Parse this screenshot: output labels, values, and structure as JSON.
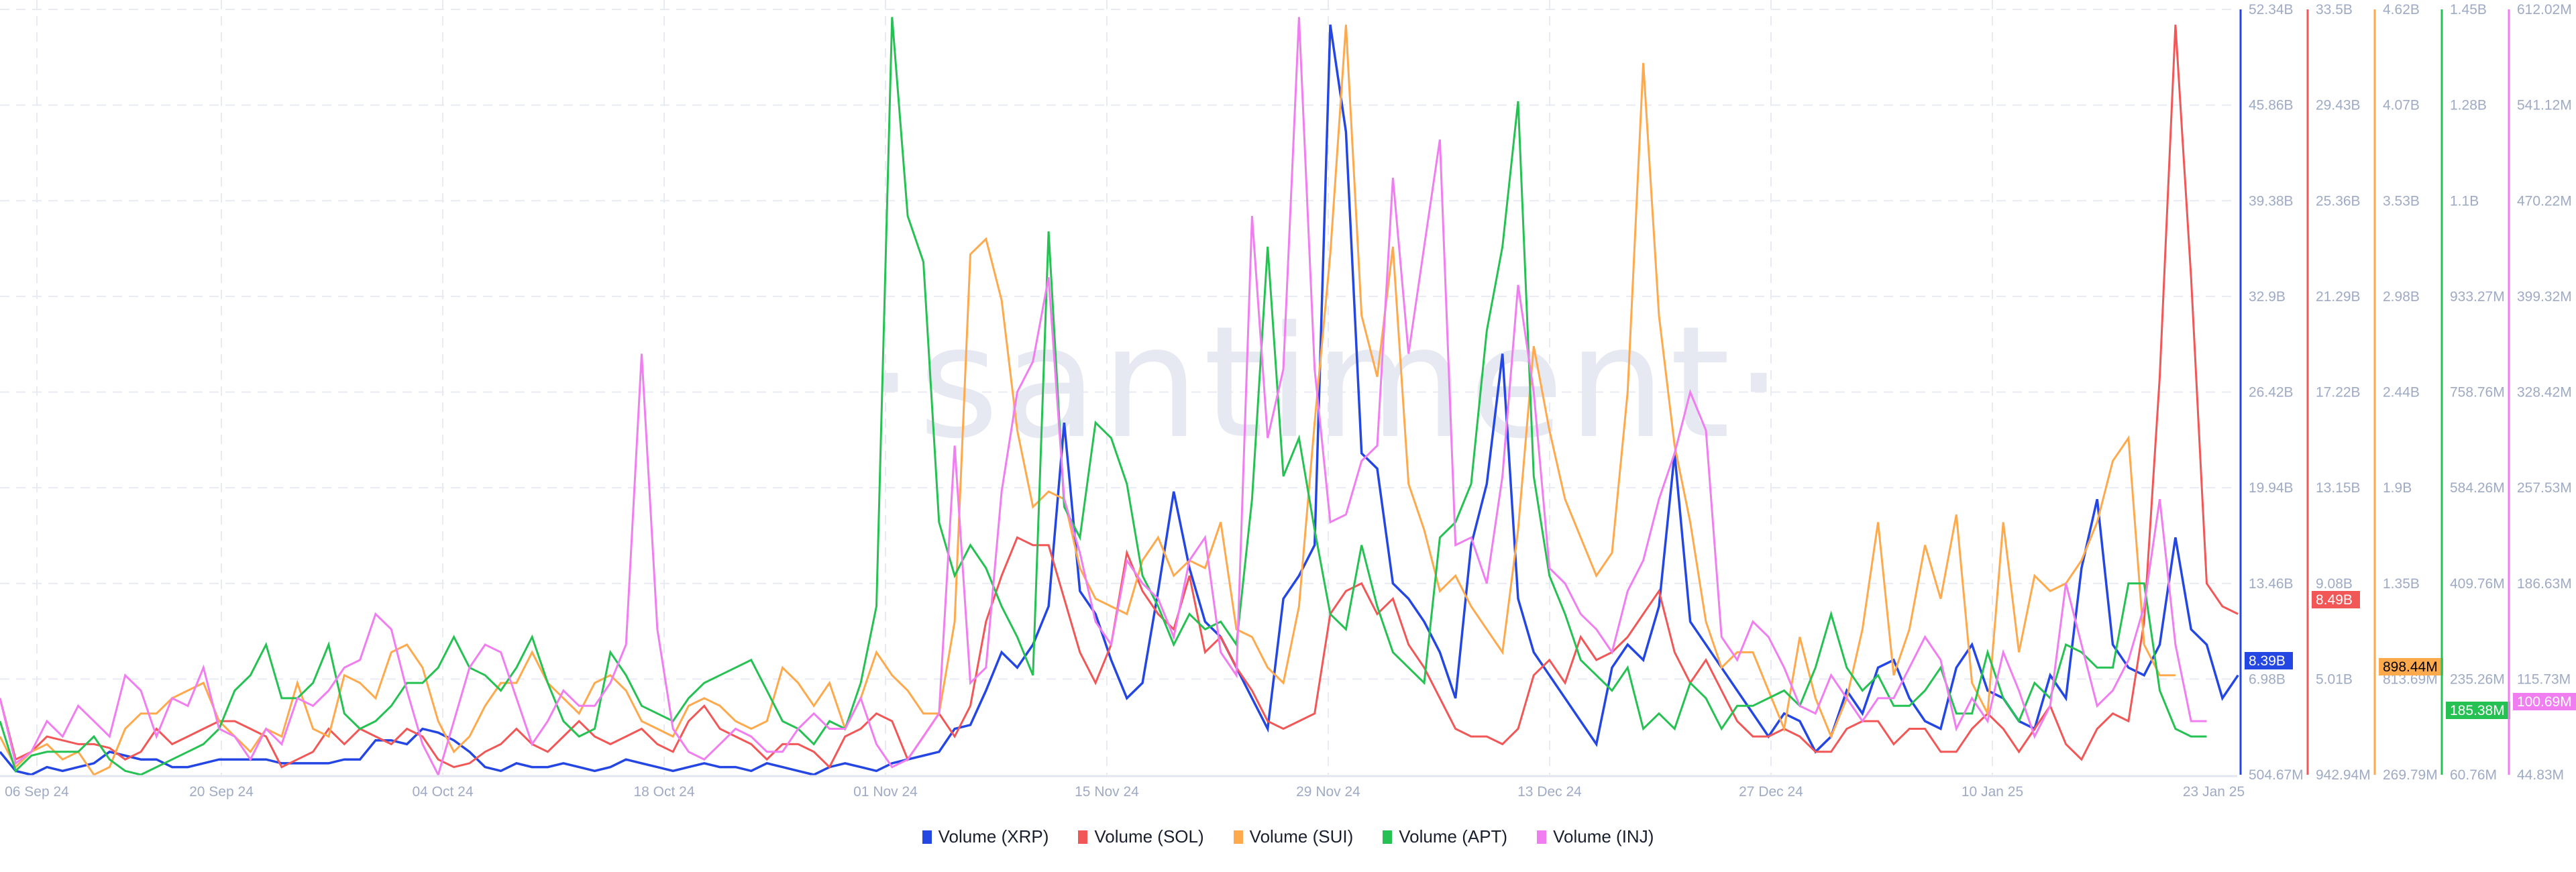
{
  "watermark": "·santiment·",
  "legend": [
    {
      "label": "Volume (XRP)",
      "color": "#2446e3"
    },
    {
      "label": "Volume (SOL)",
      "color": "#f25757"
    },
    {
      "label": "Volume (SUI)",
      "color": "#ffa94d"
    },
    {
      "label": "Volume (APT)",
      "color": "#26c153"
    },
    {
      "label": "Volume (INJ)",
      "color": "#f07ef0"
    }
  ],
  "x_axis": {
    "ticks": [
      "06 Sep 24",
      "20 Sep 24",
      "04 Oct 24",
      "18 Oct 24",
      "01 Nov 24",
      "15 Nov 24",
      "29 Nov 24",
      "13 Dec 24",
      "27 Dec 24",
      "10 Jan 25",
      "23 Jan 25"
    ]
  },
  "y_axes": [
    {
      "series": "Volume (XRP)",
      "color": "#2446e3",
      "ticks": [
        "52.34B",
        "45.86B",
        "39.38B",
        "32.9B",
        "26.42B",
        "19.94B",
        "13.46B",
        "6.98B",
        "504.67M"
      ],
      "current": "8.39B",
      "badge_text_color": "#ffffff"
    },
    {
      "series": "Volume (SOL)",
      "color": "#f25757",
      "ticks": [
        "33.5B",
        "29.43B",
        "25.36B",
        "21.29B",
        "17.22B",
        "13.15B",
        "9.08B",
        "5.01B",
        "942.94M"
      ],
      "current": "8.49B",
      "badge_text_color": "#ffffff"
    },
    {
      "series": "Volume (SUI)",
      "color": "#ffa94d",
      "ticks": [
        "4.62B",
        "4.07B",
        "3.53B",
        "2.98B",
        "2.44B",
        "1.9B",
        "1.35B",
        "813.69M",
        "269.79M"
      ],
      "current": "898.44M",
      "badge_text_color": "#000000"
    },
    {
      "series": "Volume (APT)",
      "color": "#26c153",
      "ticks": [
        "1.45B",
        "1.28B",
        "1.1B",
        "933.27M",
        "758.76M",
        "584.26M",
        "409.76M",
        "235.26M",
        "60.76M"
      ],
      "current": "185.38M",
      "badge_text_color": "#ffffff"
    },
    {
      "series": "Volume (INJ)",
      "color": "#f07ef0",
      "ticks": [
        "612.02M",
        "541.12M",
        "470.22M",
        "399.32M",
        "328.42M",
        "257.53M",
        "186.63M",
        "115.73M",
        "44.83M"
      ],
      "current": "100.69M",
      "badge_text_color": "#ffffff"
    }
  ],
  "chart_data": {
    "type": "line",
    "title": "",
    "xlabel": "",
    "ylabel": "Volume",
    "grid": true,
    "legend_position": "bottom",
    "x_start": "04 Sep 24",
    "x_end": "23 Jan 25",
    "x_step": "1 day",
    "series": [
      {
        "name": "Volume (XRP)",
        "axis_range": [
          0.50467,
          52.34
        ],
        "unit": "B",
        "norm": [
          0.03,
          0.005,
          0.0,
          0.01,
          0.005,
          0.01,
          0.015,
          0.03,
          0.025,
          0.02,
          0.02,
          0.01,
          0.01,
          0.015,
          0.02,
          0.02,
          0.02,
          0.02,
          0.015,
          0.015,
          0.015,
          0.015,
          0.02,
          0.02,
          0.045,
          0.045,
          0.04,
          0.06,
          0.055,
          0.045,
          0.03,
          0.01,
          0.005,
          0.015,
          0.01,
          0.01,
          0.015,
          0.01,
          0.005,
          0.01,
          0.02,
          0.015,
          0.01,
          0.005,
          0.01,
          0.015,
          0.01,
          0.01,
          0.005,
          0.015,
          0.01,
          0.005,
          0.0,
          0.01,
          0.015,
          0.01,
          0.005,
          0.015,
          0.02,
          0.025,
          0.03,
          0.06,
          0.065,
          0.11,
          0.16,
          0.14,
          0.17,
          0.22,
          0.46,
          0.24,
          0.21,
          0.15,
          0.1,
          0.12,
          0.24,
          0.37,
          0.27,
          0.2,
          0.18,
          0.14,
          0.1,
          0.06,
          0.23,
          0.26,
          0.3,
          0.98,
          0.84,
          0.42,
          0.4,
          0.25,
          0.23,
          0.2,
          0.16,
          0.1,
          0.3,
          0.38,
          0.55,
          0.23,
          0.16,
          0.13,
          0.1,
          0.07,
          0.04,
          0.14,
          0.17,
          0.15,
          0.22,
          0.42,
          0.2,
          0.17,
          0.14,
          0.11,
          0.08,
          0.05,
          0.08,
          0.07,
          0.03,
          0.05,
          0.11,
          0.08,
          0.14,
          0.15,
          0.1,
          0.07,
          0.06,
          0.14,
          0.17,
          0.11,
          0.1,
          0.07,
          0.06,
          0.13,
          0.1,
          0.27,
          0.36,
          0.17,
          0.14,
          0.13,
          0.17,
          0.31,
          0.19,
          0.17,
          0.1,
          0.13
        ]
      },
      {
        "name": "Volume (SOL)",
        "axis_range": [
          0.94294,
          33.5
        ],
        "unit": "B",
        "norm": [
          0.1,
          0.02,
          0.03,
          0.05,
          0.045,
          0.04,
          0.04,
          0.035,
          0.02,
          0.03,
          0.06,
          0.04,
          0.05,
          0.06,
          0.07,
          0.07,
          0.06,
          0.05,
          0.01,
          0.02,
          0.03,
          0.06,
          0.04,
          0.06,
          0.05,
          0.04,
          0.06,
          0.05,
          0.02,
          0.01,
          0.015,
          0.03,
          0.04,
          0.06,
          0.04,
          0.03,
          0.05,
          0.07,
          0.05,
          0.04,
          0.05,
          0.06,
          0.04,
          0.03,
          0.07,
          0.09,
          0.06,
          0.05,
          0.04,
          0.02,
          0.04,
          0.04,
          0.03,
          0.01,
          0.05,
          0.06,
          0.08,
          0.07,
          0.02,
          0.05,
          0.08,
          0.05,
          0.09,
          0.2,
          0.26,
          0.31,
          0.3,
          0.3,
          0.23,
          0.16,
          0.12,
          0.17,
          0.29,
          0.24,
          0.21,
          0.19,
          0.26,
          0.16,
          0.18,
          0.14,
          0.11,
          0.07,
          0.06,
          0.07,
          0.08,
          0.21,
          0.24,
          0.25,
          0.21,
          0.23,
          0.17,
          0.14,
          0.1,
          0.06,
          0.05,
          0.05,
          0.04,
          0.06,
          0.13,
          0.15,
          0.12,
          0.18,
          0.15,
          0.16,
          0.18,
          0.21,
          0.24,
          0.16,
          0.12,
          0.15,
          0.11,
          0.07,
          0.05,
          0.05,
          0.06,
          0.05,
          0.03,
          0.03,
          0.06,
          0.07,
          0.07,
          0.04,
          0.06,
          0.06,
          0.03,
          0.03,
          0.06,
          0.08,
          0.06,
          0.03,
          0.06,
          0.09,
          0.04,
          0.02,
          0.06,
          0.08,
          0.07,
          0.2,
          0.52,
          0.98,
          0.65,
          0.25,
          0.22,
          0.21
        ]
      },
      {
        "name": "Volume (SUI)",
        "axis_range": [
          0.26979,
          4.62
        ],
        "unit": "B",
        "norm": [
          0.05,
          0.01,
          0.03,
          0.04,
          0.02,
          0.03,
          0.0,
          0.01,
          0.06,
          0.08,
          0.08,
          0.1,
          0.11,
          0.12,
          0.07,
          0.05,
          0.03,
          0.06,
          0.05,
          0.12,
          0.06,
          0.05,
          0.13,
          0.12,
          0.1,
          0.16,
          0.17,
          0.14,
          0.07,
          0.03,
          0.05,
          0.09,
          0.12,
          0.12,
          0.16,
          0.12,
          0.1,
          0.08,
          0.12,
          0.13,
          0.11,
          0.07,
          0.06,
          0.05,
          0.09,
          0.1,
          0.09,
          0.07,
          0.06,
          0.07,
          0.14,
          0.12,
          0.09,
          0.12,
          0.06,
          0.1,
          0.16,
          0.13,
          0.11,
          0.08,
          0.08,
          0.2,
          0.68,
          0.7,
          0.62,
          0.45,
          0.35,
          0.37,
          0.36,
          0.27,
          0.23,
          0.22,
          0.21,
          0.28,
          0.31,
          0.26,
          0.28,
          0.27,
          0.33,
          0.19,
          0.18,
          0.14,
          0.12,
          0.22,
          0.46,
          0.68,
          0.98,
          0.6,
          0.52,
          0.69,
          0.38,
          0.32,
          0.24,
          0.26,
          0.22,
          0.19,
          0.16,
          0.32,
          0.56,
          0.45,
          0.36,
          0.31,
          0.26,
          0.29,
          0.5,
          0.93,
          0.6,
          0.43,
          0.33,
          0.2,
          0.14,
          0.16,
          0.16,
          0.11,
          0.06,
          0.18,
          0.1,
          0.05,
          0.1,
          0.19,
          0.33,
          0.13,
          0.19,
          0.3,
          0.23,
          0.34,
          0.12,
          0.08,
          0.33,
          0.16,
          0.26,
          0.24,
          0.25,
          0.28,
          0.33,
          0.41,
          0.44,
          0.17,
          0.13,
          0.13
        ]
      },
      {
        "name": "Volume (APT)",
        "axis_range": [
          0.06076,
          1.45
        ],
        "unit": "B",
        "norm": [
          0.07,
          0.005,
          0.025,
          0.03,
          0.03,
          0.03,
          0.05,
          0.02,
          0.005,
          0.0,
          0.01,
          0.02,
          0.03,
          0.04,
          0.06,
          0.11,
          0.13,
          0.17,
          0.1,
          0.1,
          0.12,
          0.17,
          0.08,
          0.06,
          0.07,
          0.09,
          0.12,
          0.12,
          0.14,
          0.18,
          0.14,
          0.13,
          0.11,
          0.14,
          0.18,
          0.12,
          0.07,
          0.05,
          0.06,
          0.16,
          0.13,
          0.09,
          0.08,
          0.07,
          0.1,
          0.12,
          0.13,
          0.14,
          0.15,
          0.11,
          0.07,
          0.06,
          0.04,
          0.07,
          0.06,
          0.12,
          0.22,
          0.99,
          0.73,
          0.67,
          0.33,
          0.26,
          0.3,
          0.27,
          0.22,
          0.18,
          0.13,
          0.71,
          0.35,
          0.31,
          0.46,
          0.44,
          0.38,
          0.26,
          0.22,
          0.17,
          0.21,
          0.19,
          0.2,
          0.17,
          0.36,
          0.69,
          0.39,
          0.44,
          0.32,
          0.21,
          0.19,
          0.3,
          0.22,
          0.16,
          0.14,
          0.12,
          0.31,
          0.33,
          0.38,
          0.58,
          0.69,
          0.88,
          0.39,
          0.26,
          0.21,
          0.15,
          0.13,
          0.11,
          0.14,
          0.06,
          0.08,
          0.06,
          0.12,
          0.1,
          0.06,
          0.09,
          0.09,
          0.1,
          0.11,
          0.09,
          0.14,
          0.21,
          0.14,
          0.11,
          0.13,
          0.09,
          0.09,
          0.11,
          0.14,
          0.08,
          0.08,
          0.16,
          0.1,
          0.07,
          0.12,
          0.1,
          0.17,
          0.16,
          0.14,
          0.14,
          0.25,
          0.25,
          0.11,
          0.06,
          0.05,
          0.05
        ]
      },
      {
        "name": "Volume (INJ)",
        "axis_range": [
          0.04483,
          0.61202
        ],
        "unit": "B",
        "norm": [
          0.1,
          0.015,
          0.03,
          0.07,
          0.05,
          0.09,
          0.07,
          0.05,
          0.13,
          0.11,
          0.05,
          0.1,
          0.09,
          0.14,
          0.06,
          0.05,
          0.02,
          0.06,
          0.04,
          0.1,
          0.09,
          0.11,
          0.14,
          0.15,
          0.21,
          0.19,
          0.11,
          0.04,
          0.0,
          0.07,
          0.14,
          0.17,
          0.16,
          0.1,
          0.04,
          0.07,
          0.11,
          0.09,
          0.09,
          0.12,
          0.17,
          0.55,
          0.19,
          0.06,
          0.03,
          0.02,
          0.04,
          0.06,
          0.05,
          0.03,
          0.03,
          0.06,
          0.08,
          0.06,
          0.06,
          0.1,
          0.04,
          0.01,
          0.02,
          0.05,
          0.08,
          0.43,
          0.12,
          0.14,
          0.37,
          0.5,
          0.54,
          0.65,
          0.36,
          0.29,
          0.2,
          0.17,
          0.28,
          0.25,
          0.23,
          0.18,
          0.28,
          0.31,
          0.16,
          0.13,
          0.73,
          0.44,
          0.53,
          0.99,
          0.53,
          0.33,
          0.34,
          0.41,
          0.43,
          0.78,
          0.55,
          0.69,
          0.83,
          0.3,
          0.31,
          0.25,
          0.39,
          0.64,
          0.5,
          0.27,
          0.25,
          0.21,
          0.19,
          0.16,
          0.24,
          0.28,
          0.36,
          0.42,
          0.5,
          0.45,
          0.18,
          0.15,
          0.2,
          0.18,
          0.14,
          0.09,
          0.08,
          0.13,
          0.1,
          0.07,
          0.1,
          0.1,
          0.14,
          0.18,
          0.15,
          0.06,
          0.1,
          0.07,
          0.16,
          0.11,
          0.05,
          0.09,
          0.25,
          0.17,
          0.09,
          0.11,
          0.15,
          0.22,
          0.36,
          0.17,
          0.07,
          0.07
        ]
      }
    ]
  }
}
